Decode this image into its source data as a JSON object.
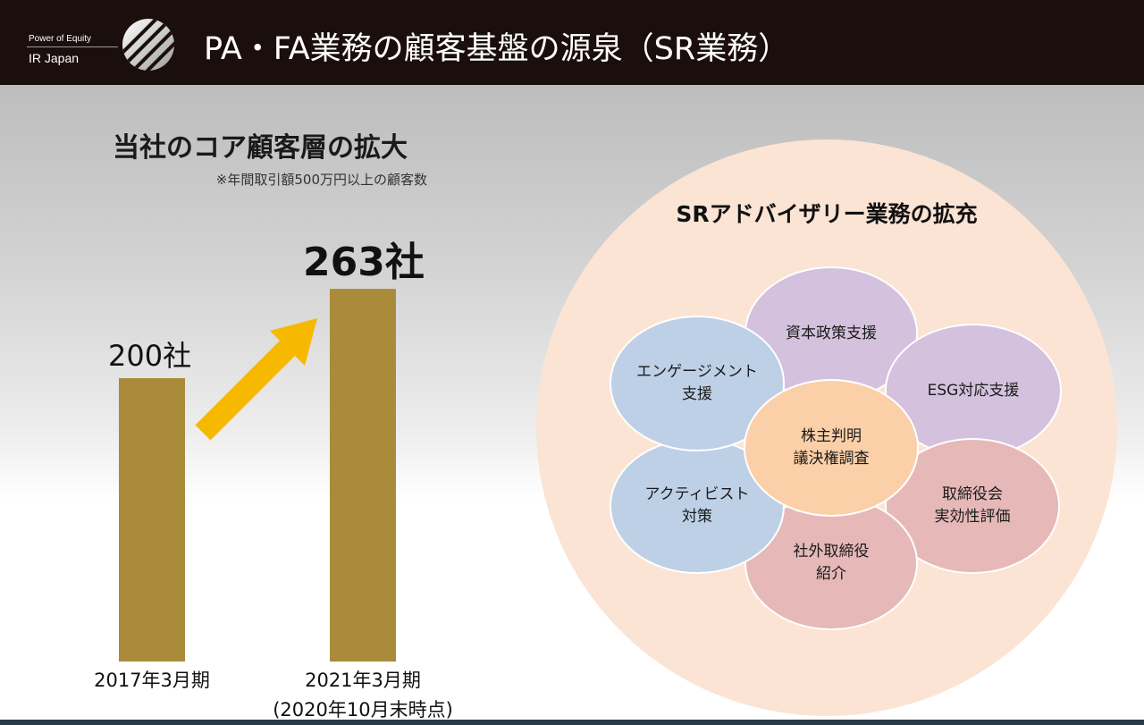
{
  "header": {
    "tagline": "Power of Equity",
    "company": "IR Japan",
    "title": "PA・FA業務の顧客基盤の源泉（SR業務）"
  },
  "left_panel": {
    "title": "当社のコア顧客層の拡大",
    "note": "※年間取引額500万円以上の顧客数"
  },
  "chart_data": {
    "type": "bar",
    "categories": [
      "2017年3月期",
      "2021年3月期"
    ],
    "category_notes": [
      "",
      "(2020年10月末時点)"
    ],
    "values": [
      200,
      263
    ],
    "value_labels": [
      "200社",
      "263社"
    ],
    "unit": "社",
    "bar_color": "#a98b3a",
    "arrow_color": "#f7b800",
    "title": "",
    "xlabel": "",
    "ylabel": "",
    "grid": false,
    "legend": "none"
  },
  "right_panel": {
    "title": "SRアドバイザリー業務の拡充",
    "center": "株主判明\n議決権調査",
    "petals": [
      {
        "label": "資本政策支援",
        "color": "#d4c1de"
      },
      {
        "label": "ESG対応支援",
        "color": "#d4c1de"
      },
      {
        "label": "取締役会\n実効性評価",
        "color": "#e6b8b8"
      },
      {
        "label": "社外取締役\n紹介",
        "color": "#e6b8b8"
      },
      {
        "label": "アクティビスト\n対策",
        "color": "#bdd0e6"
      },
      {
        "label": "エンゲージメント\n支援",
        "color": "#bdd0e6"
      }
    ],
    "center_color": "#fbcfa8",
    "background_color": "#fbe4d4"
  }
}
